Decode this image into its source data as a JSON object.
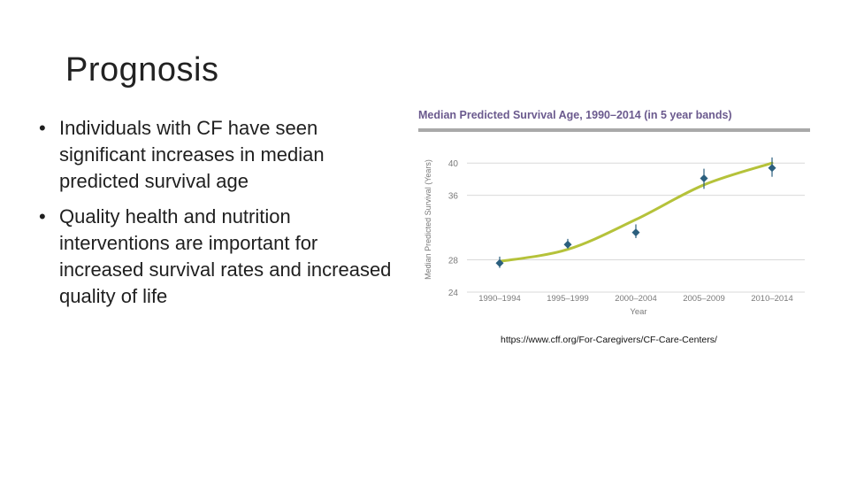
{
  "slide": {
    "title": "Prognosis",
    "bullets": [
      {
        "marker": "•",
        "text": "Individuals with CF have seen significant increases in median predicted survival age"
      },
      {
        "marker": "•",
        "text": "Quality health and nutrition interventions are important for increased survival rates and increased quality of life"
      }
    ],
    "source": "https://www.cff.org/For-Caregivers/CF-Care-Centers/"
  },
  "colors": {
    "title_purple": "#6b5a8e",
    "trend_line": "#b5c23a",
    "marker": "#2b5f7e",
    "grid": "#d9d9d9",
    "axis_text": "#7a7a7a"
  },
  "chart_data": {
    "type": "scatter",
    "title": "Median Predicted Survival Age, 1990–2014",
    "subtitle": "(in 5 year bands)",
    "xlabel": "Year",
    "ylabel": "Median Predicted Survival (Years)",
    "categories": [
      "1990–1994",
      "1995–1999",
      "2000–2004",
      "2005–2009",
      "2010–2014"
    ],
    "yticks": [
      "24",
      "28",
      "36",
      "40"
    ],
    "ylim": [
      24,
      42
    ],
    "grid": true,
    "series": [
      {
        "values": [
          27.6,
          29.9,
          31.4,
          38.1,
          39.4
        ],
        "error_low": [
          27.0,
          29.4,
          30.7,
          36.8,
          38.3
        ],
        "error_high": [
          28.4,
          30.6,
          32.4,
          39.3,
          40.7
        ]
      }
    ],
    "trend": [
      27.8,
      29.3,
      33.0,
      37.3,
      40.0
    ]
  }
}
